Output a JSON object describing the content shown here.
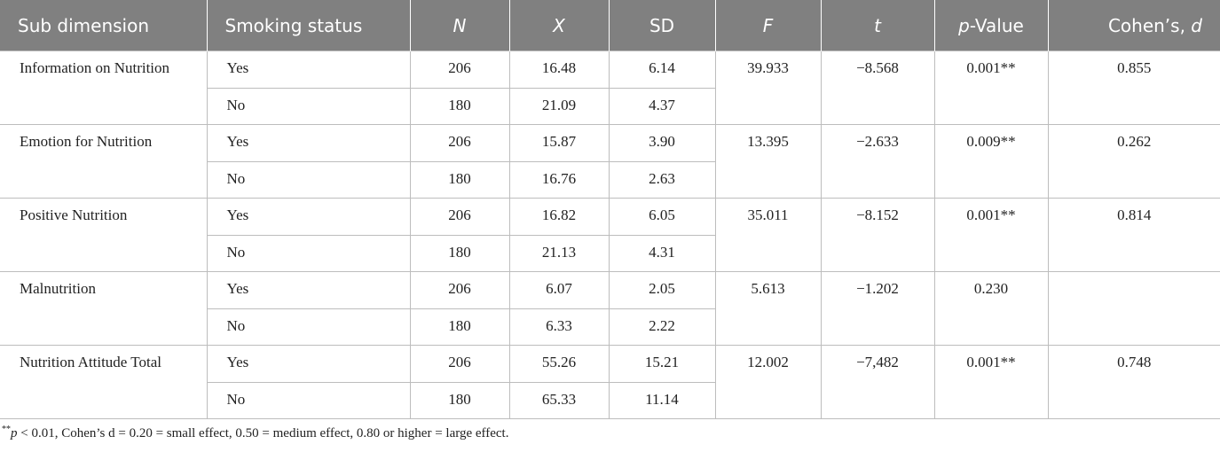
{
  "table": {
    "header": [
      "Sub dimension",
      "Smoking status",
      "N",
      "X",
      "SD",
      "F",
      "t",
      [
        "p",
        "-Value"
      ],
      [
        "Cohen’s, ",
        "d"
      ]
    ],
    "groups": [
      {
        "label": "Information on Nutrition",
        "rows": [
          [
            "Yes",
            "206",
            "16.48",
            "6.14"
          ],
          [
            "No",
            "180",
            "21.09",
            "4.37"
          ]
        ],
        "F": "39.933",
        "t": "−8.568",
        "p": "0.001**",
        "d": "0.855"
      },
      {
        "label": "Emotion for Nutrition",
        "rows": [
          [
            "Yes",
            "206",
            "15.87",
            "3.90"
          ],
          [
            "No",
            "180",
            "16.76",
            "2.63"
          ]
        ],
        "F": "13.395",
        "t": "−2.633",
        "p": "0.009**",
        "d": "0.262"
      },
      {
        "label": "Positive Nutrition",
        "rows": [
          [
            "Yes",
            "206",
            "16.82",
            "6.05"
          ],
          [
            "No",
            "180",
            "21.13",
            "4.31"
          ]
        ],
        "F": "35.011",
        "t": "−8.152",
        "p": "0.001**",
        "d": "0.814"
      },
      {
        "label": "Malnutrition",
        "rows": [
          [
            "Yes",
            "206",
            "6.07",
            "2.05"
          ],
          [
            "No",
            "180",
            "6.33",
            "2.22"
          ]
        ],
        "F": "5.613",
        "t": "−1.202",
        "p": "0.230"
      },
      {
        "label": "Nutrition Attitude Total",
        "rows": [
          [
            "Yes",
            "206",
            "55.26",
            "15.21"
          ],
          [
            "No",
            "180",
            "65.33",
            "11.14"
          ]
        ],
        "F": "12.002",
        "t": "−7,482",
        "p": "0.001**",
        "d": "0.748"
      }
    ]
  },
  "footnote": [
    "**",
    "p",
    " < 0.01, Cohen’s d = 0.20 = small effect, 0.50 = medium effect, 0.80 or higher = large effect."
  ]
}
